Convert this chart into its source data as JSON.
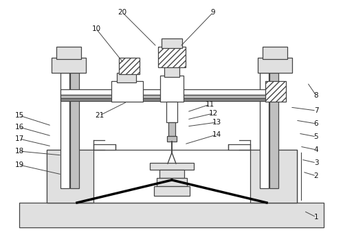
{
  "bg": "white",
  "lc": "#444444",
  "fc_gray": "#e0e0e0",
  "fc_dgray": "#c0c0c0",
  "lw": 0.9,
  "fontsize": 7.5,
  "leaders": [
    [
      "1",
      460,
      316,
      442,
      307
    ],
    [
      "2",
      460,
      256,
      440,
      250
    ],
    [
      "3",
      460,
      237,
      438,
      232
    ],
    [
      "4",
      460,
      218,
      436,
      213
    ],
    [
      "5",
      460,
      199,
      434,
      194
    ],
    [
      "6",
      460,
      180,
      430,
      175
    ],
    [
      "7",
      460,
      161,
      422,
      156
    ],
    [
      "8",
      460,
      139,
      447,
      120
    ],
    [
      "9",
      310,
      18,
      262,
      68
    ],
    [
      "10",
      140,
      42,
      180,
      92
    ],
    [
      "11",
      305,
      152,
      272,
      163
    ],
    [
      "12",
      310,
      165,
      272,
      174
    ],
    [
      "13",
      315,
      178,
      272,
      184
    ],
    [
      "14",
      315,
      196,
      268,
      210
    ],
    [
      "15",
      28,
      168,
      75,
      183
    ],
    [
      "16",
      28,
      185,
      75,
      198
    ],
    [
      "17",
      28,
      202,
      75,
      213
    ],
    [
      "18",
      28,
      220,
      90,
      226
    ],
    [
      "19",
      28,
      240,
      90,
      254
    ],
    [
      "20",
      178,
      18,
      228,
      68
    ],
    [
      "21",
      145,
      168,
      185,
      148
    ]
  ]
}
